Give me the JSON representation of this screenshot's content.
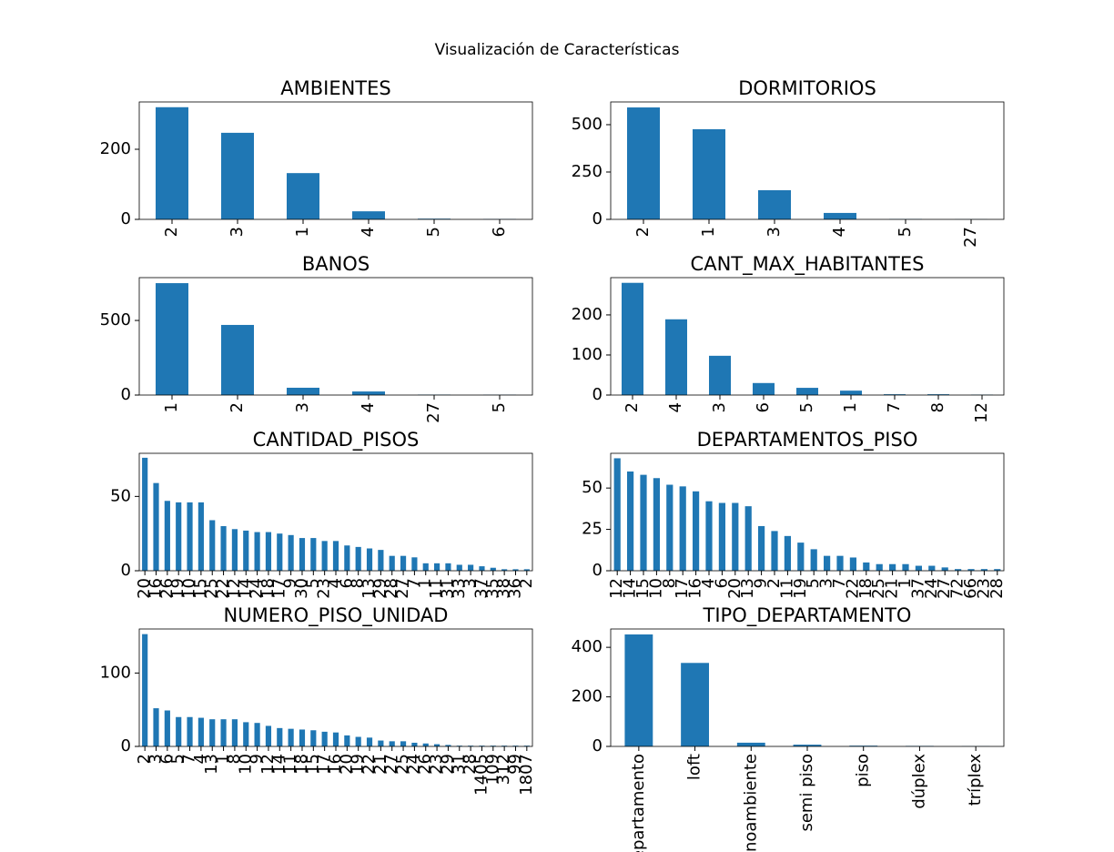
{
  "title": "Visualización de Características",
  "chart_data": [
    {
      "type": "bar",
      "title": "AMBIENTES",
      "categories": [
        "2",
        "3",
        "1",
        "4",
        "5",
        "6"
      ],
      "values": [
        320,
        247,
        132,
        23,
        2,
        1
      ],
      "color": "#1f77b4",
      "ylim": [
        0,
        335
      ],
      "yticks": [
        0,
        200
      ]
    },
    {
      "type": "bar",
      "title": "DORMITORIOS",
      "categories": [
        "2",
        "1",
        "3",
        "4",
        "5",
        "27"
      ],
      "values": [
        591,
        476,
        154,
        34,
        2,
        1
      ],
      "color": "#1f77b4",
      "ylim": [
        0,
        620
      ],
      "yticks": [
        0,
        250,
        500
      ]
    },
    {
      "type": "bar",
      "title": "BANOS",
      "categories": [
        "1",
        "2",
        "3",
        "4",
        "27",
        "5"
      ],
      "values": [
        750,
        470,
        49,
        24,
        3,
        2
      ],
      "color": "#1f77b4",
      "ylim": [
        0,
        787
      ],
      "yticks": [
        0,
        500
      ]
    },
    {
      "type": "bar",
      "title": "CANT_MAX_HABITANTES",
      "categories": [
        "2",
        "4",
        "3",
        "6",
        "5",
        "1",
        "7",
        "8",
        "12"
      ],
      "values": [
        280,
        189,
        98,
        30,
        18,
        11,
        2,
        2,
        1
      ],
      "color": "#1f77b4",
      "ylim": [
        0,
        293
      ],
      "yticks": [
        0,
        100,
        200
      ]
    },
    {
      "type": "bar",
      "title": "CANTIDAD_PISOS",
      "categories": [
        "20",
        "16",
        "26",
        "19",
        "10",
        "15",
        "25",
        "22",
        "12",
        "14",
        "24",
        "18",
        "17",
        "9",
        "30",
        "5",
        "23",
        "4",
        "6",
        "8",
        "13",
        "29",
        "28",
        "27",
        "7",
        "1",
        "11",
        "31",
        "33",
        "3",
        "37",
        "35",
        "38",
        "36",
        "2"
      ],
      "values": [
        76,
        59,
        47,
        46,
        46,
        46,
        34,
        30,
        28,
        27,
        26,
        26,
        25,
        24,
        22,
        22,
        20,
        20,
        17,
        16,
        15,
        14,
        10,
        10,
        9,
        5,
        5,
        5,
        4,
        4,
        3,
        2,
        1,
        1,
        1
      ],
      "color": "#1f77b4",
      "ylim": [
        0,
        79
      ],
      "yticks": [
        0,
        50
      ]
    },
    {
      "type": "bar",
      "title": "DEPARTAMENTOS_PISO",
      "categories": [
        "12",
        "14",
        "15",
        "10",
        "8",
        "17",
        "16",
        "4",
        "6",
        "20",
        "13",
        "9",
        "2",
        "11",
        "19",
        "5",
        "3",
        "7",
        "22",
        "18",
        "25",
        "21",
        "1",
        "37",
        "24",
        "27",
        "72",
        "66",
        "23",
        "28"
      ],
      "values": [
        68,
        60,
        58,
        56,
        52,
        51,
        48,
        42,
        41,
        41,
        39,
        27,
        24,
        21,
        17,
        13,
        9,
        9,
        8,
        5,
        4,
        4,
        4,
        3,
        3,
        2,
        1,
        1,
        1,
        1
      ],
      "color": "#1f77b4",
      "ylim": [
        0,
        71
      ],
      "yticks": [
        0,
        25,
        50
      ]
    },
    {
      "type": "bar",
      "title": "NUMERO_PISO_UNIDAD",
      "categories": [
        "2",
        "3",
        "6",
        "5",
        "7",
        "4",
        "13",
        "1",
        "8",
        "10",
        "9",
        "12",
        "14",
        "11",
        "18",
        "15",
        "17",
        "16",
        "20",
        "19",
        "22",
        "21",
        "27",
        "25",
        "24",
        "26",
        "23",
        "29",
        "31",
        "28",
        "1405",
        "109",
        "312",
        "99",
        "1807"
      ],
      "values": [
        153,
        52,
        49,
        40,
        40,
        39,
        37,
        37,
        37,
        33,
        32,
        28,
        25,
        24,
        23,
        22,
        20,
        19,
        15,
        13,
        12,
        8,
        7,
        7,
        5,
        4,
        3,
        2,
        1,
        1,
        1,
        1,
        1,
        1,
        1
      ],
      "color": "#1f77b4",
      "ylim": [
        0,
        160
      ],
      "yticks": [
        0,
        100
      ]
    },
    {
      "type": "bar",
      "title": "TIPO_DEPARTAMENTO",
      "categories": [
        "departamento",
        "loft",
        "monoambiente",
        "semi piso",
        "piso",
        "dúplex",
        "tríplex"
      ],
      "values": [
        452,
        337,
        15,
        7,
        3,
        2,
        1
      ],
      "color": "#1f77b4",
      "ylim": [
        0,
        474
      ],
      "yticks": [
        0,
        200,
        400
      ]
    }
  ]
}
